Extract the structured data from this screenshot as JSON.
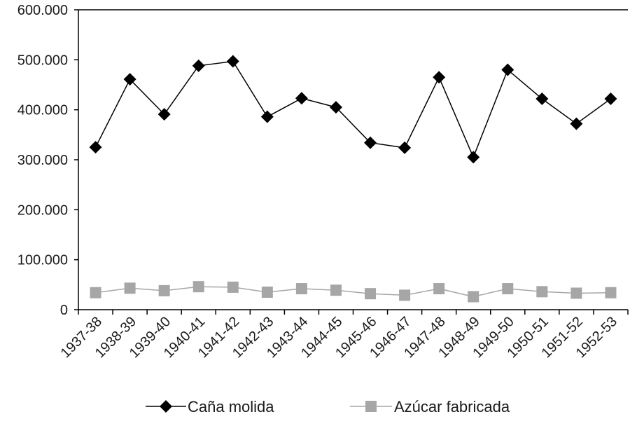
{
  "chart_data": {
    "type": "line",
    "title": "",
    "xlabel": "",
    "ylabel": "",
    "categories": [
      "1937-38",
      "1938-39",
      "1939-40",
      "1940-41",
      "1941-42",
      "1942-43",
      "1943-44",
      "1944-45",
      "1945-46",
      "1946-47",
      "1947-48",
      "1948-49",
      "1949-50",
      "1950-51",
      "1951-52",
      "1952-53"
    ],
    "ylim": [
      0,
      600000
    ],
    "yticks": [
      0,
      100000,
      200000,
      300000,
      400000,
      500000,
      600000
    ],
    "ytick_labels": [
      "0",
      "100.000",
      "200.000",
      "300.000",
      "400.000",
      "500.000",
      "600.000"
    ],
    "grid": false,
    "legend_position": "bottom",
    "series": [
      {
        "name": "Caña molida",
        "color": "#000000",
        "marker": "diamond",
        "values": [
          325000,
          461000,
          391000,
          488000,
          497000,
          386000,
          423000,
          405000,
          334000,
          324000,
          465000,
          305000,
          480000,
          422000,
          372000,
          422000
        ]
      },
      {
        "name": "Azúcar fabricada",
        "color": "#a6a6a6",
        "marker": "square",
        "values": [
          34000,
          43000,
          38000,
          46000,
          45000,
          35000,
          42000,
          39000,
          32000,
          29000,
          42000,
          26000,
          42000,
          36000,
          33000,
          34000
        ]
      }
    ]
  }
}
